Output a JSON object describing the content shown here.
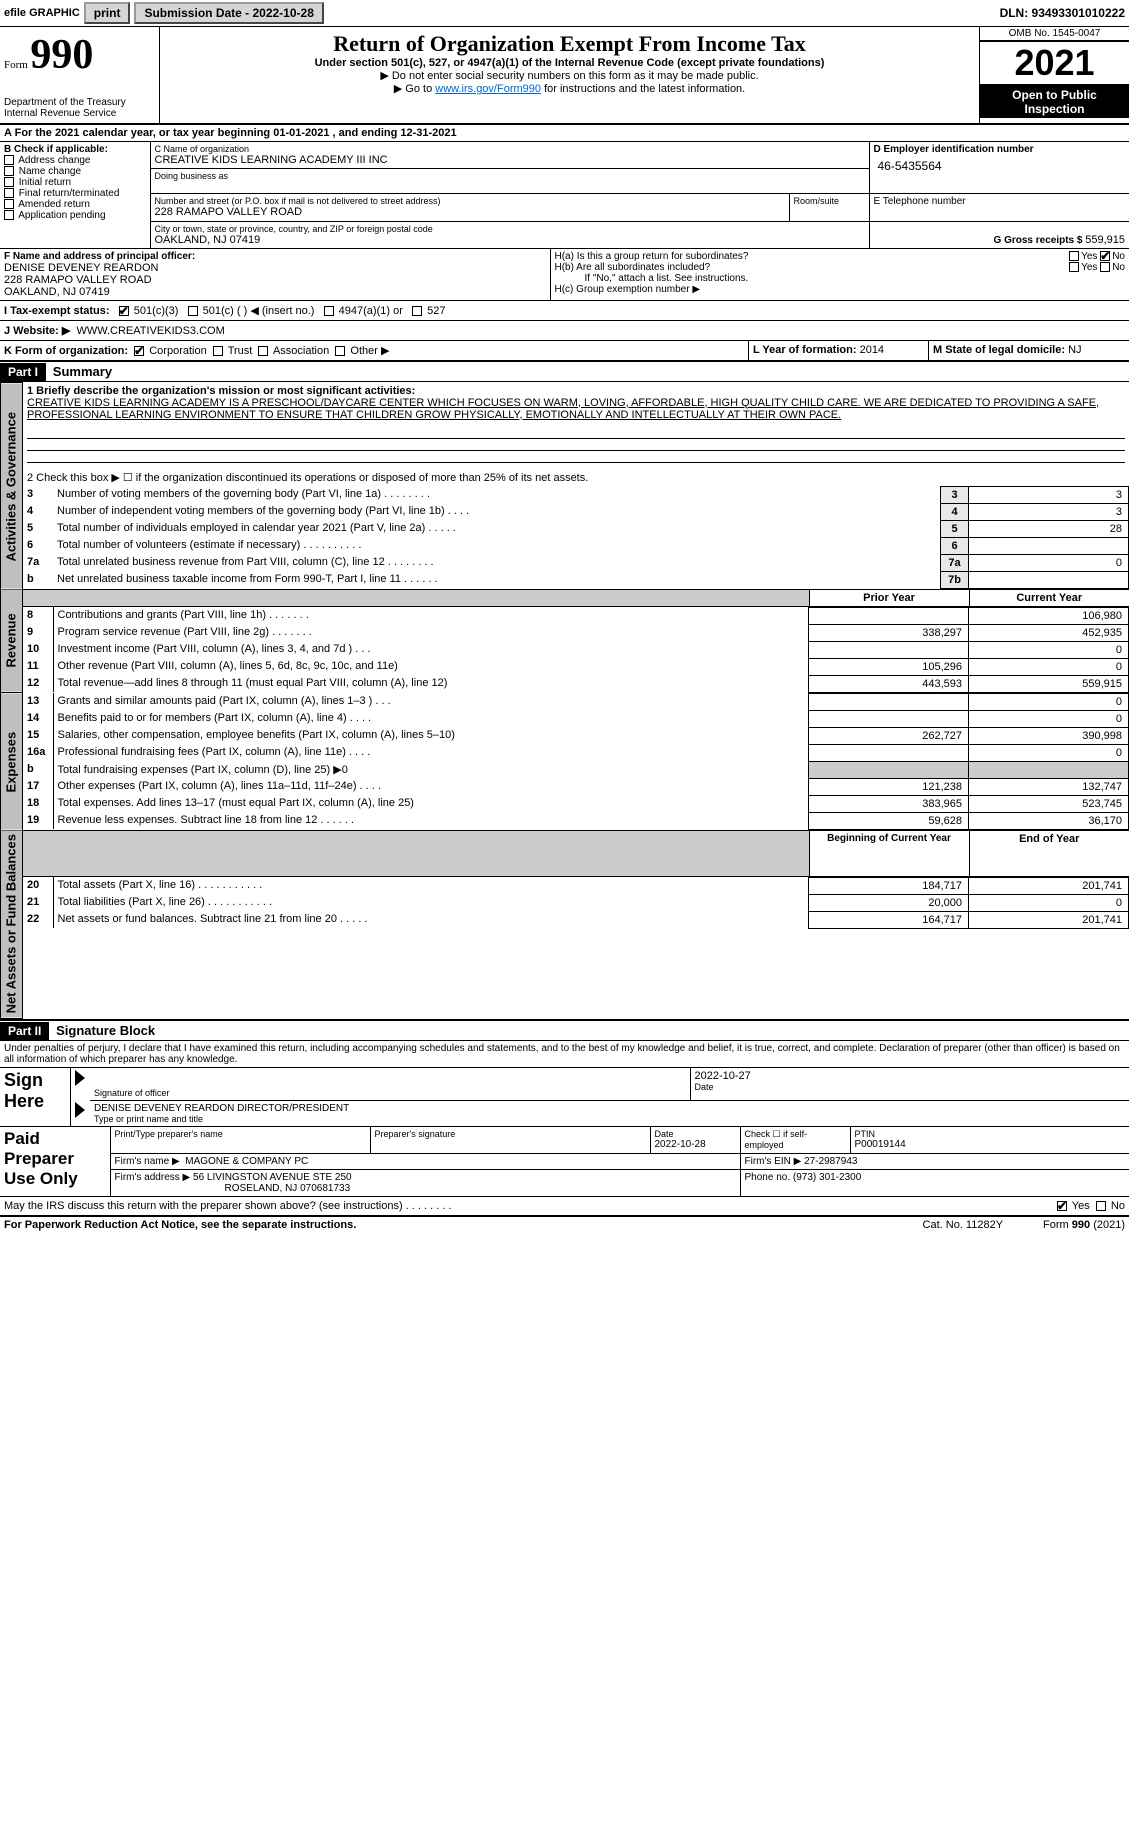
{
  "topbar": {
    "efile": "efile GRAPHIC",
    "print": "print",
    "subdate_lbl": "Submission Date - 2022-10-28",
    "dln": "DLN: 93493301010222"
  },
  "header": {
    "form_word": "Form",
    "form_number": "990",
    "title": "Return of Organization Exempt From Income Tax",
    "subtitle": "Under section 501(c), 527, or 4947(a)(1) of the Internal Revenue Code (except private foundations)",
    "note1": "▶ Do not enter social security numbers on this form as it may be made public.",
    "note2_pre": "▶ Go to ",
    "note2_link": "www.irs.gov/Form990",
    "note2_post": " for instructions and the latest information.",
    "dept": "Department of the Treasury",
    "irs": "Internal Revenue Service",
    "omb": "OMB No. 1545-0047",
    "year": "2021",
    "open": "Open to Public Inspection"
  },
  "A": {
    "line": "For the 2021 calendar year, or tax year beginning 01-01-2021    , and ending 12-31-2021",
    "prefix": "A"
  },
  "B": {
    "title": "B Check if applicable:",
    "opts": [
      "Address change",
      "Name change",
      "Initial return",
      "Final return/terminated",
      "Amended return",
      "Application pending"
    ]
  },
  "C": {
    "lbl": "C Name of organization",
    "name": "CREATIVE KIDS LEARNING ACADEMY III INC",
    "dba_lbl": "Doing business as",
    "dba": "",
    "street_lbl": "Number and street (or P.O. box if mail is not delivered to street address)",
    "room_lbl": "Room/suite",
    "street": "228 RAMAPO VALLEY ROAD",
    "city_lbl": "City or town, state or province, country, and ZIP or foreign postal code",
    "city": "OAKLAND, NJ  07419"
  },
  "D": {
    "lbl": "D Employer identification number",
    "val": "46-5435564"
  },
  "E": {
    "lbl": "E Telephone number",
    "val": ""
  },
  "G": {
    "lbl": "G Gross receipts $",
    "val": "559,915"
  },
  "F": {
    "lbl": "F  Name and address of principal officer:",
    "name": "DENISE DEVENEY REARDON",
    "street": "228 RAMAPO VALLEY ROAD",
    "city": "OAKLAND, NJ  07419"
  },
  "H": {
    "a": "H(a)  Is this a group return for subordinates?",
    "b": "H(b)  Are all subordinates included?",
    "b_note": "If \"No,\" attach a list. See instructions.",
    "c": "H(c)  Group exemption number ▶",
    "yes": "Yes",
    "no": "No"
  },
  "I": {
    "lbl": "I    Tax-exempt status:",
    "o1": "501(c)(3)",
    "o2": "501(c) (   ) ◀ (insert no.)",
    "o3": "4947(a)(1) or",
    "o4": "527"
  },
  "J": {
    "lbl": "J    Website: ▶",
    "val": "WWW.CREATIVEKIDS3.COM"
  },
  "K": {
    "lbl": "K Form of organization:",
    "opts": [
      "Corporation",
      "Trust",
      "Association",
      "Other ▶"
    ]
  },
  "L": {
    "lbl": "L Year of formation:",
    "val": "2014"
  },
  "M": {
    "lbl": "M State of legal domicile:",
    "val": "NJ"
  },
  "part1": {
    "hdr": "Part I",
    "title": "Summary"
  },
  "p1": {
    "l1_lbl": "1  Briefly describe the organization's mission or most significant activities:",
    "l1_txt": "CREATIVE KIDS LEARNING ACADEMY IS A PRESCHOOL/DAYCARE CENTER WHICH FOCUSES ON WARM, LOVING, AFFORDABLE, HIGH QUALITY CHILD CARE. WE ARE DEDICATED TO PROVIDING A SAFE, PROFESSIONAL LEARNING ENVIRONMENT TO ENSURE THAT CHILDREN GROW PHYSICALLY, EMOTIONALLY AND INTELLECTUALLY AT THEIR OWN PACE.",
    "l2": "2   Check this box ▶ ☐  if the organization discontinued its operations or disposed of more than 25% of its net assets.",
    "rows_a": [
      {
        "n": "3",
        "t": "Number of voting members of the governing body (Part VI, line 1a)   .     .     .     .     .     .     .     .",
        "box": "3",
        "v": "3"
      },
      {
        "n": "4",
        "t": "Number of independent voting members of the governing body (Part VI, line 1b)    .     .     .     .",
        "box": "4",
        "v": "3"
      },
      {
        "n": "5",
        "t": "Total number of individuals employed in calendar year 2021 (Part V, line 2a)   .     .     .     .     .",
        "box": "5",
        "v": "28"
      },
      {
        "n": "6",
        "t": "Total number of volunteers (estimate if necessary)    .     .     .     .     .     .     .     .     .     .",
        "box": "6",
        "v": ""
      },
      {
        "n": "7a",
        "t": "Total unrelated business revenue from Part VIII, column (C), line 12   .    .    .    .    .    .    .    .",
        "box": "7a",
        "v": "0"
      },
      {
        "n": "b",
        "t": "Net unrelated business taxable income from Form 990-T, Part I, line 11   .     .     .     .     .     .",
        "box": "7b",
        "v": ""
      }
    ],
    "col_prior": "Prior Year",
    "col_current": "Current Year",
    "rev": [
      {
        "n": "8",
        "t": "Contributions and grants (Part VIII, line 1h)   .     .     .     .     .     .     .",
        "p": "",
        "c": "106,980"
      },
      {
        "n": "9",
        "t": "Program service revenue (Part VIII, line 2g)   .     .     .     .     .     .     .",
        "p": "338,297",
        "c": "452,935"
      },
      {
        "n": "10",
        "t": "Investment income (Part VIII, column (A), lines 3, 4, and 7d )    .     .     .",
        "p": "",
        "c": "0"
      },
      {
        "n": "11",
        "t": "Other revenue (Part VIII, column (A), lines 5, 6d, 8c, 9c, 10c, and 11e)",
        "p": "105,296",
        "c": "0"
      },
      {
        "n": "12",
        "t": "Total revenue—add lines 8 through 11 (must equal Part VIII, column (A), line 12)",
        "p": "443,593",
        "c": "559,915"
      }
    ],
    "exp": [
      {
        "n": "13",
        "t": "Grants and similar amounts paid (Part IX, column (A), lines 1–3 )   .     .     .",
        "p": "",
        "c": "0"
      },
      {
        "n": "14",
        "t": "Benefits paid to or for members (Part IX, column (A), line 4)   .     .     .     .",
        "p": "",
        "c": "0"
      },
      {
        "n": "15",
        "t": "Salaries, other compensation, employee benefits (Part IX, column (A), lines 5–10)",
        "p": "262,727",
        "c": "390,998"
      },
      {
        "n": "16a",
        "t": "Professional fundraising fees (Part IX, column (A), line 11e)   .     .     .     .",
        "p": "",
        "c": "0"
      },
      {
        "n": "b",
        "t": "Total fundraising expenses (Part IX, column (D), line 25) ▶0",
        "p": "gray",
        "c": "gray"
      },
      {
        "n": "17",
        "t": "Other expenses (Part IX, column (A), lines 11a–11d, 11f–24e)   .     .     .     .",
        "p": "121,238",
        "c": "132,747"
      },
      {
        "n": "18",
        "t": "Total expenses. Add lines 13–17 (must equal Part IX, column (A), line 25)",
        "p": "383,965",
        "c": "523,745"
      },
      {
        "n": "19",
        "t": "Revenue less expenses. Subtract line 18 from line 12   .     .     .     .     .     .",
        "p": "59,628",
        "c": "36,170"
      }
    ],
    "col_begin": "Beginning of Current Year",
    "col_end": "End of Year",
    "net": [
      {
        "n": "20",
        "t": "Total assets (Part X, line 16)   .     .     .     .     .     .     .     .     .     .     .",
        "p": "184,717",
        "c": "201,741"
      },
      {
        "n": "21",
        "t": "Total liabilities (Part X, line 26)   .     .     .     .     .     .     .     .     .     .     .",
        "p": "20,000",
        "c": "0"
      },
      {
        "n": "22",
        "t": "Net assets or fund balances. Subtract line 21 from line 20   .     .     .     .     .",
        "p": "164,717",
        "c": "201,741"
      }
    ]
  },
  "vtabs": {
    "ag": "Activities & Governance",
    "rev": "Revenue",
    "exp": "Expenses",
    "net": "Net Assets or Fund Balances"
  },
  "part2": {
    "hdr": "Part II",
    "title": "Signature Block"
  },
  "sig": {
    "declaration": "Under penalties of perjury, I declare that I have examined this return, including accompanying schedules and statements, and to the best of my knowledge and belief, it is true, correct, and complete. Declaration of preparer (other than officer) is based on all information of which preparer has any knowledge.",
    "sign_here": "Sign Here",
    "sig_officer": "Signature of officer",
    "date": "Date",
    "date_val": "2022-10-27",
    "type_name": "Type or print name and title",
    "name_title": "DENISE DEVENEY REARDON  DIRECTOR/PRESIDENT"
  },
  "paid": {
    "title": "Paid Preparer Use Only",
    "print_lbl": "Print/Type preparer's name",
    "print_val": "",
    "sig_lbl": "Preparer's signature",
    "date_lbl": "Date",
    "date_val": "2022-10-28",
    "check_lbl": "Check ☐ if self-employed",
    "ptin_lbl": "PTIN",
    "ptin_val": "P00019144",
    "firm_name_lbl": "Firm's name    ▶",
    "firm_name": "MAGONE & COMPANY PC",
    "firm_ein_lbl": "Firm's EIN ▶",
    "firm_ein": "27-2987943",
    "firm_addr_lbl": "Firm's address ▶",
    "firm_addr1": "56 LIVINGSTON AVENUE STE 250",
    "firm_addr2": "ROSELAND, NJ  070681733",
    "phone_lbl": "Phone no.",
    "phone": "(973) 301-2300"
  },
  "may_irs": "May the IRS discuss this return with the preparer shown above? (see instructions)   .     .     .     .     .     .     .     .",
  "footer": {
    "pra": "For Paperwork Reduction Act Notice, see the separate instructions.",
    "cat": "Cat. No. 11282Y",
    "form": "Form 990 (2021)"
  }
}
